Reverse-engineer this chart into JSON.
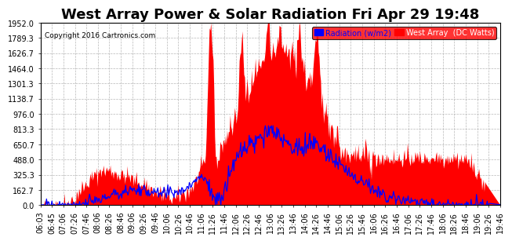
{
  "title": "West Array Power & Solar Radiation Fri Apr 29 19:48",
  "copyright": "Copyright 2016 Cartronics.com",
  "legend_radiation": "Radiation (w/m2)",
  "legend_west": "West Array  (DC Watts)",
  "yticks": [
    0.0,
    162.7,
    325.3,
    488.0,
    650.7,
    813.3,
    976.0,
    1138.7,
    1301.3,
    1464.0,
    1626.7,
    1789.3,
    1952.0
  ],
  "ymax": 1952.0,
  "ymin": 0.0,
  "background_color": "#ffffff",
  "plot_bg_color": "#ffffff",
  "grid_color": "#b0b0b0",
  "red_fill_color": "#ff0000",
  "blue_line_color": "#0000ff",
  "title_fontsize": 13,
  "axis_fontsize": 7,
  "xtick_labels": [
    "06:03",
    "06:45",
    "07:06",
    "07:26",
    "07:46",
    "08:06",
    "08:26",
    "08:46",
    "09:06",
    "09:26",
    "09:46",
    "10:06",
    "10:26",
    "10:46",
    "11:06",
    "11:26",
    "11:46",
    "12:06",
    "12:26",
    "12:46",
    "13:06",
    "13:26",
    "13:46",
    "14:06",
    "14:26",
    "14:46",
    "15:06",
    "15:26",
    "15:46",
    "16:06",
    "16:26",
    "16:46",
    "17:06",
    "17:26",
    "17:46",
    "18:06",
    "18:26",
    "18:46",
    "19:06",
    "19:26",
    "19:46"
  ]
}
